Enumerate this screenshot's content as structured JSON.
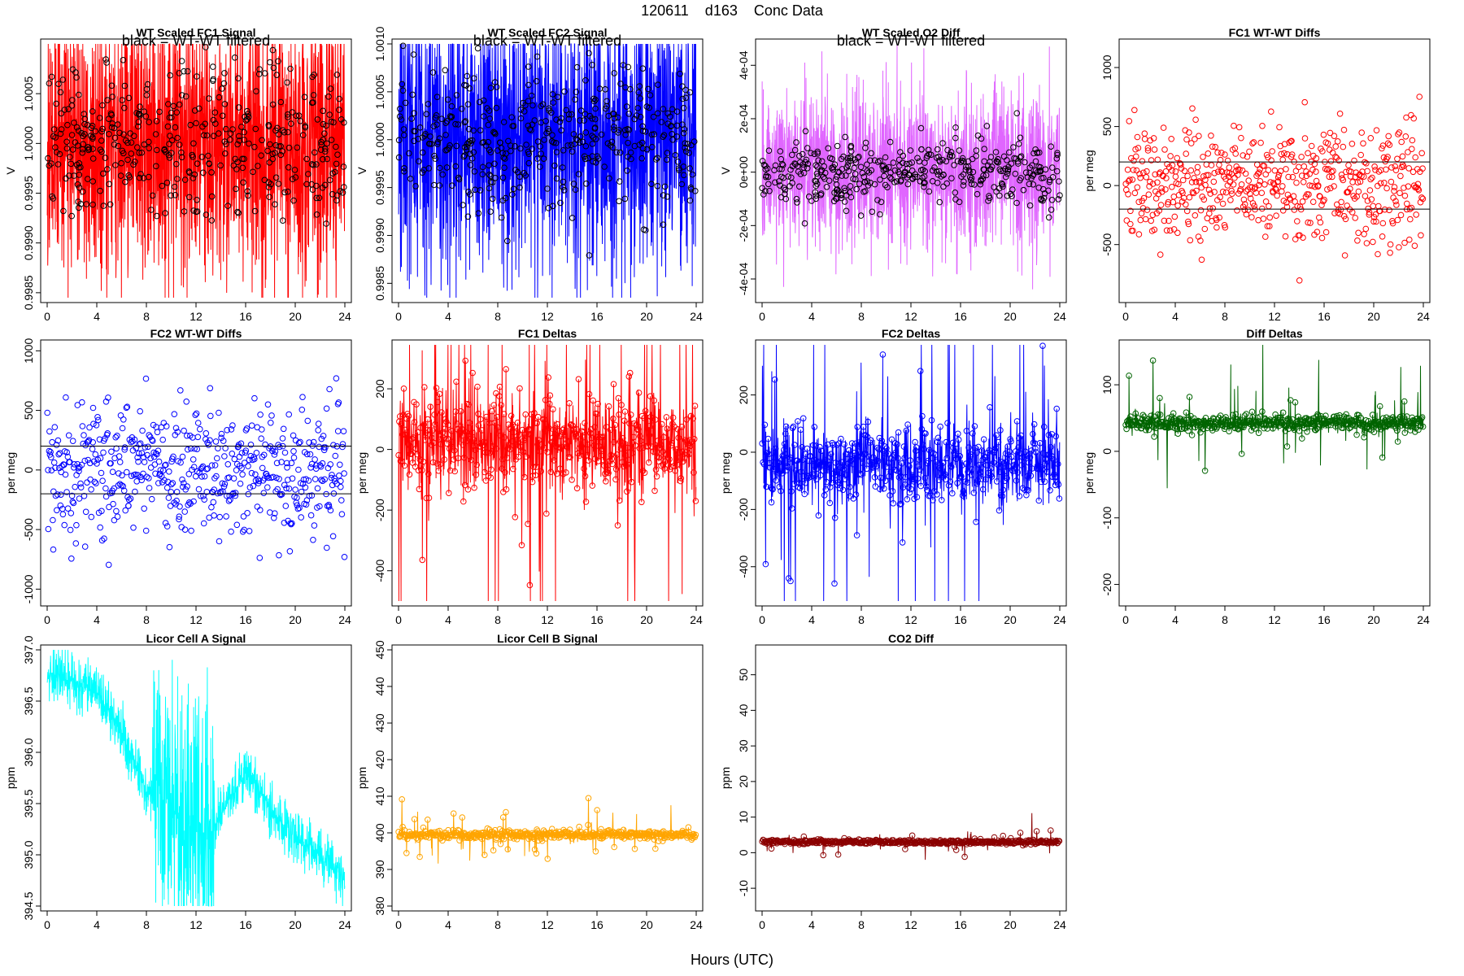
{
  "page": {
    "title": "120611    d163    Conc Data",
    "xlabel": "Hours (UTC)"
  },
  "chart_data": [
    {
      "id": "p1",
      "title": "WT Scaled FC1 Signal",
      "type": "line",
      "ylabel": "V",
      "color": "#ff0000",
      "overlay_color": "#000000",
      "annotation": "black = WT-WT filtered",
      "xlim": [
        0,
        24
      ],
      "ylim": [
        0.99845,
        1.001
      ],
      "xticks": [
        0,
        4,
        8,
        12,
        16,
        20,
        24
      ],
      "yticks": [
        0.9985,
        0.999,
        0.9995,
        1.0,
        1.0005
      ],
      "ytick_labels": [
        "0.9985",
        "0.9990",
        "0.9995",
        "1.0000",
        "1.0005"
      ],
      "center": 1.0,
      "spread": 0.0005,
      "noise": 0.0005,
      "seed": 11
    },
    {
      "id": "p2",
      "title": "WT Scaled FC2 Signal",
      "type": "line",
      "ylabel": "V",
      "color": "#0000ff",
      "overlay_color": "#000000",
      "annotation": "black = WT-WT filtered",
      "xlim": [
        0,
        24
      ],
      "ylim": [
        0.99835,
        1.001
      ],
      "xticks": [
        0,
        4,
        8,
        12,
        16,
        20,
        24
      ],
      "yticks": [
        0.9985,
        0.999,
        0.9995,
        1.0,
        1.0005,
        1.001
      ],
      "ytick_labels": [
        "0.9985",
        "0.9990",
        "0.9995",
        "1.0000",
        "1.0005",
        "1.0010"
      ],
      "center": 1.0,
      "spread": 0.0005,
      "noise": 0.0005,
      "seed": 23
    },
    {
      "id": "p3",
      "title": "WT Scaled O2 Diff",
      "type": "line",
      "ylabel": "V",
      "color": "#e066ff",
      "overlay_color": "#000000",
      "annotation": "black = WT-WT filtered",
      "xlim": [
        0,
        24
      ],
      "ylim": [
        -0.00047,
        0.00048
      ],
      "xticks": [
        0,
        4,
        8,
        12,
        16,
        20,
        24
      ],
      "yticks": [
        -0.0004,
        -0.0002,
        0,
        0.0002,
        0.0004
      ],
      "ytick_labels": [
        "-4e-04",
        "-2e-04",
        "0e+00",
        "2e-04",
        "4e-04"
      ],
      "center": 0.0,
      "spread": 8e-05,
      "noise": 0.00012,
      "seed": 37
    },
    {
      "id": "p4",
      "title": "FC1 WT-WT Diffs",
      "type": "scatter",
      "ylabel": "per meg",
      "color": "#ff0000",
      "xlim": [
        0,
        24
      ],
      "ylim": [
        -950,
        1200
      ],
      "xticks": [
        0,
        4,
        8,
        12,
        16,
        20,
        24
      ],
      "yticks": [
        -500,
        0,
        500,
        1000
      ],
      "ytick_labels": [
        "-500",
        "0",
        "500",
        "1000"
      ],
      "hlines": [
        200,
        -200
      ],
      "center": 0,
      "spread": 250,
      "noise": 0,
      "seed": 41
    },
    {
      "id": "p5",
      "title": "FC2 WT-WT Diffs",
      "type": "scatter",
      "ylabel": "per meg",
      "color": "#0000ff",
      "xlim": [
        0,
        24
      ],
      "ylim": [
        -1100,
        1050
      ],
      "xticks": [
        0,
        4,
        8,
        12,
        16,
        20,
        24
      ],
      "yticks": [
        -1000,
        -500,
        0,
        500,
        1000
      ],
      "ytick_labels": [
        "-1000",
        "-500",
        "0",
        "500",
        "1000"
      ],
      "hlines": [
        200,
        -200
      ],
      "center": 0,
      "spread": 280,
      "noise": 0,
      "seed": 53
    },
    {
      "id": "p6",
      "title": "FC1 Deltas",
      "type": "line-points",
      "ylabel": "per meg",
      "color": "#ff0000",
      "xlim": [
        0,
        24
      ],
      "ylim": [
        -500,
        345
      ],
      "xticks": [
        0,
        4,
        8,
        12,
        16,
        20,
        24
      ],
      "yticks": [
        -400,
        -200,
        0,
        200
      ],
      "ytick_labels": [
        "-400",
        "-200",
        "0",
        "200"
      ],
      "center": 20,
      "spread": 80,
      "noise": 0,
      "seed": 67
    },
    {
      "id": "p7",
      "title": "FC2 Deltas",
      "type": "line-points",
      "ylabel": "per meg",
      "color": "#0000ff",
      "xlim": [
        0,
        24
      ],
      "ylim": [
        -520,
        375
      ],
      "xticks": [
        0,
        4,
        8,
        12,
        16,
        20,
        24
      ],
      "yticks": [
        -400,
        -200,
        0,
        200
      ],
      "ytick_labels": [
        "-400",
        "-200",
        "0",
        "200"
      ],
      "center": -45,
      "spread": 70,
      "noise": 0,
      "seed": 79
    },
    {
      "id": "p8",
      "title": "Diff Deltas",
      "type": "line-points",
      "ylabel": "per meg",
      "color": "#006400",
      "xlim": [
        0,
        24
      ],
      "ylim": [
        -225,
        160
      ],
      "xticks": [
        0,
        4,
        8,
        12,
        16,
        20,
        24
      ],
      "yticks": [
        -200,
        -100,
        0,
        100
      ],
      "ytick_labels": [
        "-200",
        "-100",
        "0",
        "100"
      ],
      "center": 42,
      "spread": 6,
      "noise": 0,
      "seed": 83
    },
    {
      "id": "p9",
      "title": "Licor Cell A Signal",
      "type": "line",
      "ylabel": "ppm",
      "color": "#00ffff",
      "xlim": [
        0,
        24
      ],
      "ylim": [
        394.5,
        397.0
      ],
      "xticks": [
        0,
        4,
        8,
        12,
        16,
        20,
        24
      ],
      "yticks": [
        394.5,
        395.0,
        395.5,
        396.0,
        396.5,
        397.0
      ],
      "ytick_labels": [
        "394.5",
        "395.0",
        "395.5",
        "396.0",
        "396.5",
        "397.0"
      ],
      "trend": [
        [
          0,
          396.75
        ],
        [
          4,
          396.6
        ],
        [
          6,
          396.2
        ],
        [
          8,
          395.6
        ],
        [
          10,
          395.5
        ],
        [
          13,
          395.2
        ],
        [
          16,
          395.8
        ],
        [
          19,
          395.3
        ],
        [
          22,
          395.0
        ],
        [
          24,
          394.75
        ]
      ],
      "seed": 97
    },
    {
      "id": "p10",
      "title": "Licor Cell B Signal",
      "type": "line-points",
      "ylabel": "ppm",
      "color": "#ffa500",
      "xlim": [
        0,
        24
      ],
      "ylim": [
        380,
        450
      ],
      "xticks": [
        0,
        4,
        8,
        12,
        16,
        20,
        24
      ],
      "yticks": [
        380,
        390,
        400,
        410,
        420,
        430,
        440,
        450
      ],
      "ytick_labels": [
        "380",
        "390",
        "400",
        "410",
        "420",
        "430",
        "440",
        "450"
      ],
      "center": 399.5,
      "spread": 0.6,
      "noise": 0,
      "seed": 101
    },
    {
      "id": "p11",
      "title": "CO2 Diff",
      "type": "line-points",
      "ylabel": "ppm",
      "color": "#8b0000",
      "xlim": [
        0,
        24
      ],
      "ylim": [
        -15,
        57
      ],
      "xticks": [
        0,
        4,
        8,
        12,
        16,
        20,
        24
      ],
      "yticks": [
        -10,
        0,
        10,
        20,
        30,
        40,
        50
      ],
      "ytick_labels": [
        "-10",
        "0",
        "10",
        "20",
        "30",
        "40",
        "50"
      ],
      "center": 3,
      "spread": 0.3,
      "noise": 0,
      "seed": 113
    }
  ]
}
